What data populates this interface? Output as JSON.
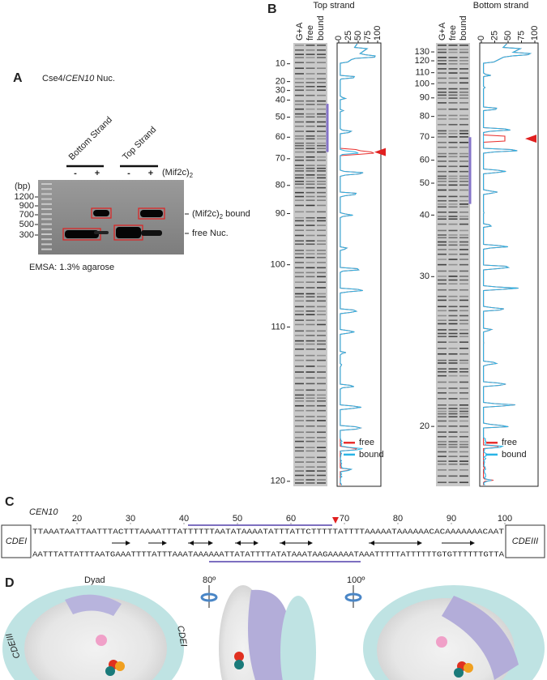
{
  "panel_a": {
    "label": "A",
    "title": {
      "prefix": "Cse4/",
      "gene": "CEN10",
      "suffix": " Nuc."
    },
    "lanes": [
      {
        "name": "Bottom Strand",
        "signs": [
          "-",
          "+"
        ]
      },
      {
        "name": "Top Strand",
        "signs": [
          "-",
          "+"
        ]
      }
    ],
    "condition": {
      "text": "(Mif2c)",
      "subscript": "2"
    },
    "size_unit": "(bp)",
    "size_markers": [
      1200,
      900,
      700,
      500,
      300
    ],
    "bands": {
      "bound": {
        "text": "(Mif2c)",
        "subscript": "2",
        "suffix": " bound"
      },
      "free": "free Nuc."
    },
    "caption": "EMSA: 1.3% agarose"
  },
  "panel_b": {
    "label": "B",
    "strands": [
      {
        "title": "Top strand",
        "lanes": [
          "G+A",
          "free",
          "bound"
        ],
        "positions": [
          10,
          20,
          30,
          40,
          50,
          60,
          70,
          80,
          90,
          100,
          110,
          120
        ],
        "profile_ticks": [
          0,
          25,
          50,
          75,
          100
        ],
        "legend": [
          {
            "name": "free",
            "color": "#e8312f"
          },
          {
            "name": "bound",
            "color": "#29b4e6"
          }
        ]
      },
      {
        "title": "Bottom strand",
        "lanes": [
          "G+A",
          "free",
          "bound"
        ],
        "positions": [
          130,
          120,
          110,
          100,
          90,
          80,
          70,
          60,
          50,
          40,
          30,
          20
        ],
        "profile_ticks": [
          0,
          25,
          50,
          75,
          100
        ],
        "legend": [
          {
            "name": "free",
            "color": "#e8312f"
          },
          {
            "name": "bound",
            "color": "#29b4e6"
          }
        ]
      }
    ]
  },
  "panel_c": {
    "label": "C",
    "locus": "CEN10",
    "ruler": [
      20,
      30,
      40,
      50,
      60,
      70,
      80,
      90,
      100
    ],
    "left_element": "CDEI",
    "right_element": "CDEIII",
    "top_sequence": "TTAAATAATTAATTTACTTTAAAATTTATTTTTTAATATAAAATATTTATTCTTTTTATTTTAAAAATAAAAAACACAAAAAAACAAT",
    "bottom_sequence": "AATTTATTATTTAATGAAATTTTATTTAAATAAAAAATTATATTTTATATAAATAAGAAAAATAAATTTTTATTTTTTGTGTTTTTTGTTA"
  },
  "panel_d": {
    "label": "D",
    "dyad": "Dyad",
    "rotations": [
      "80º",
      "100º"
    ],
    "elements": [
      "CDEI",
      "CDEIII"
    ]
  }
}
